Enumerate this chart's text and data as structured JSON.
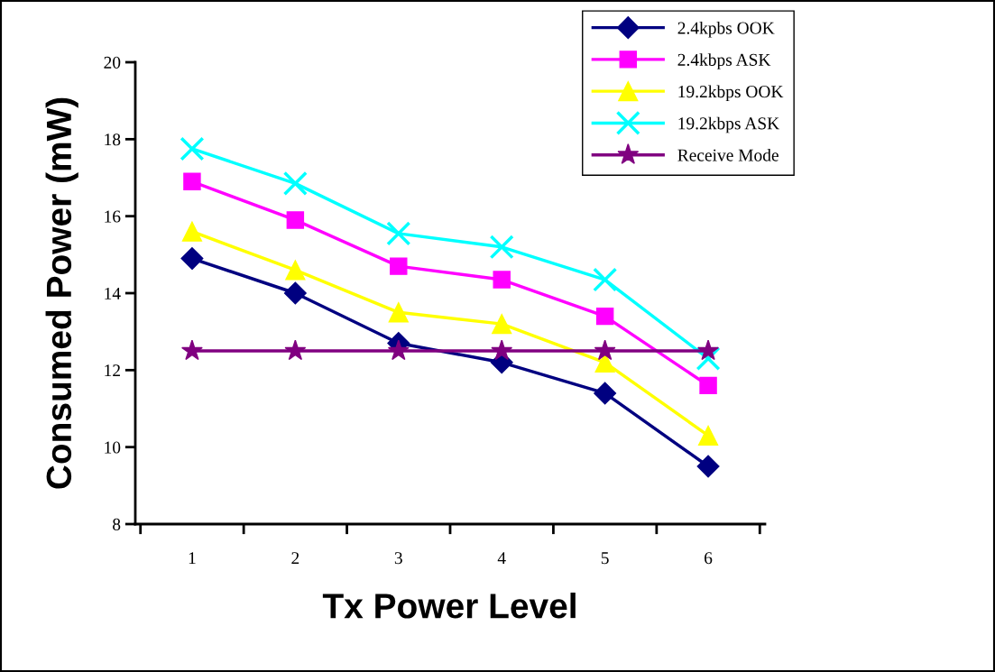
{
  "chart_data": {
    "type": "line",
    "xlabel": "Tx Power Level",
    "ylabel": "Consumed Power (mW)",
    "categories": [
      "1",
      "2",
      "3",
      "4",
      "5",
      "6"
    ],
    "series": [
      {
        "name": "2.4kpbs OOK",
        "color": "#000080",
        "marker": "diamond",
        "values": [
          14.9,
          14.0,
          12.7,
          12.2,
          11.4,
          9.5
        ]
      },
      {
        "name": "2.4kbps ASK",
        "color": "#ff00ff",
        "marker": "square",
        "values": [
          16.9,
          15.9,
          14.7,
          14.35,
          13.4,
          11.6
        ]
      },
      {
        "name": "19.2kbps OOK",
        "color": "#ffff00",
        "marker": "triangle",
        "values": [
          15.6,
          14.6,
          13.5,
          13.2,
          12.2,
          10.3
        ]
      },
      {
        "name": "19.2kbps ASK",
        "color": "#00ffff",
        "marker": "cross",
        "values": [
          17.75,
          16.85,
          15.55,
          15.2,
          14.35,
          12.3
        ]
      },
      {
        "name": "Receive Mode",
        "color": "#800080",
        "marker": "star",
        "values": [
          12.5,
          12.5,
          12.5,
          12.5,
          12.5,
          12.5
        ]
      }
    ],
    "ylim": [
      8,
      20
    ],
    "yticks": [
      8,
      10,
      12,
      14,
      16,
      18,
      20
    ],
    "grid": false,
    "legend": "top right",
    "line_style": "solid"
  }
}
